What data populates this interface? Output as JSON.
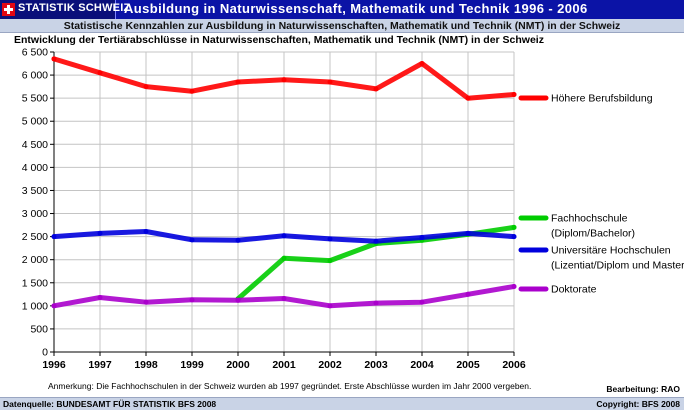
{
  "header": {
    "brand": "STATISTIK SCHWEIZ",
    "title": "Ausbildung in Naturwissenschaft, Mathematik und Technik",
    "years": "1996 - 2006",
    "subtitle": "Statistische Kennzahlen zur Ausbildung in Naturwissenschaften, Mathematik und Technik (NMT) in der Schweiz"
  },
  "footer": {
    "note": "Anmerkung:  Die Fachhochschulen in der Schweiz wurden ab 1997 gegründet. Erste Abschlüsse wurden im Jahr 2000 vergeben.",
    "credit": "Bearbeitung: RAO",
    "source": "Datenquelle: BUNDESAMT FÜR STATISTIK BFS 2008",
    "copyright": "Copyright:  BFS 2008"
  },
  "chart_data": {
    "type": "line",
    "title": "Entwicklung der Tertiärabschlüsse in Naturwissenschaften, Mathematik und Technik (NMT) in der Schweiz",
    "x": [
      1996,
      1997,
      1998,
      1999,
      2000,
      2001,
      2002,
      2003,
      2004,
      2005,
      2006
    ],
    "x_tick_labels": [
      "1996",
      "1997",
      "1998",
      "1999",
      "2000",
      "2001",
      "2002",
      "2003",
      "2004",
      "2005",
      "2006"
    ],
    "ylim": [
      0,
      6500
    ],
    "y_ticks": [
      0,
      500,
      1000,
      1500,
      2000,
      2500,
      3000,
      3500,
      4000,
      4500,
      5000,
      5500,
      6000,
      6500
    ],
    "y_tick_labels": [
      "0",
      "500",
      "1 000",
      "1 500",
      "2 000",
      "2 500",
      "3 000",
      "3 500",
      "4 000",
      "4 500",
      "5 000",
      "5 500",
      "6 000",
      "6 500"
    ],
    "grid": true,
    "legend_position": "right",
    "series": [
      {
        "name": "Höhere Berufsbildung",
        "label_lines": [
          "Höhere Berufsbildung"
        ],
        "color": "#ff0000",
        "values": [
          6350,
          6050,
          5750,
          5650,
          5850,
          5900,
          5850,
          5700,
          6250,
          5500,
          5580
        ]
      },
      {
        "name": "Fachhochschule (Diplom/Bachelor)",
        "label_lines": [
          "Fachhochschule",
          "(Diplom/Bachelor)"
        ],
        "color": "#00cc00",
        "values": [
          null,
          null,
          null,
          null,
          1150,
          2030,
          1980,
          2350,
          2420,
          2550,
          2700
        ]
      },
      {
        "name": "Universitäre Hochschulen (Lizentiat/Diplom und Master)",
        "label_lines": [
          "Universitäre Hochschulen",
          "(Lizentiat/Diplom und Master)"
        ],
        "color": "#0000dd",
        "values": [
          2500,
          2570,
          2610,
          2430,
          2420,
          2520,
          2450,
          2400,
          2480,
          2570,
          2500
        ]
      },
      {
        "name": "Doktorate",
        "label_lines": [
          "Doktorate"
        ],
        "color": "#aa00cc",
        "values": [
          1000,
          1180,
          1080,
          1130,
          1120,
          1160,
          1000,
          1060,
          1080,
          1250,
          1420
        ]
      }
    ]
  }
}
